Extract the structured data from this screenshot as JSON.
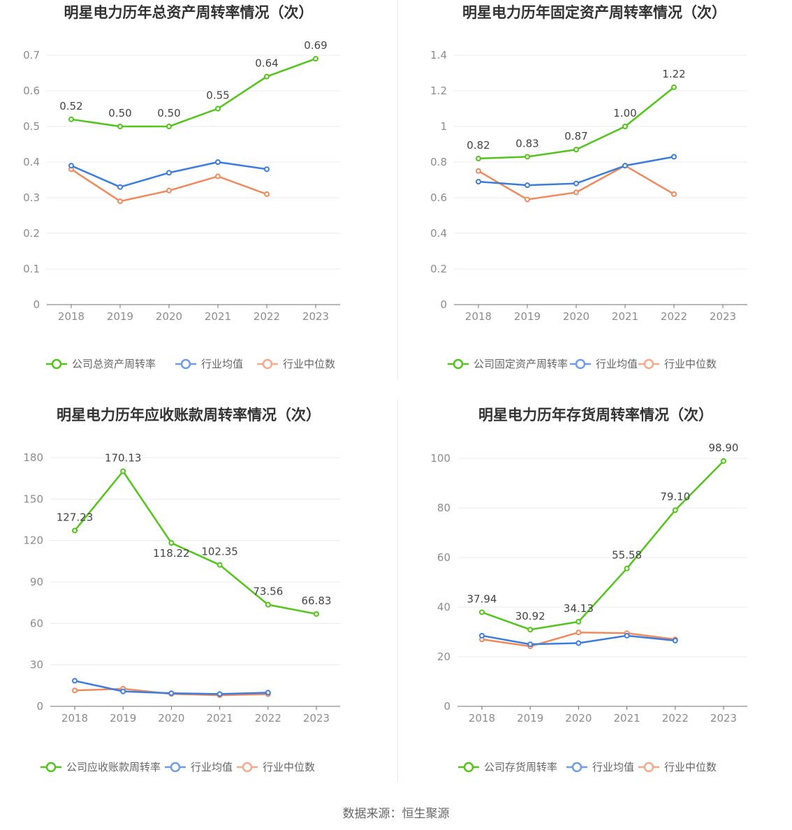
{
  "colors": {
    "company": "#52c41a",
    "avg": "#3b7ddd",
    "median": "#f08a5d",
    "avg_legend": "#6f9be8",
    "median_legend": "#f5a98a"
  },
  "chart_data": [
    {
      "type": "line",
      "title": "明星电力历年总资产周转率情况（次）",
      "categories": [
        "2018",
        "2019",
        "2020",
        "2021",
        "2022",
        "2023"
      ],
      "yticks": [
        "0",
        "0.1",
        "0.2",
        "0.3",
        "0.4",
        "0.5",
        "0.6",
        "0.7"
      ],
      "ylim": [
        0,
        0.7
      ],
      "series": [
        {
          "name": "公司总资产周转率",
          "values": [
            0.52,
            0.5,
            0.5,
            0.55,
            0.64,
            0.69
          ],
          "labels": [
            "0.52",
            "0.50",
            "0.50",
            "0.55",
            "0.64",
            "0.69"
          ]
        },
        {
          "name": "行业均值",
          "values": [
            0.39,
            0.33,
            0.37,
            0.4,
            0.38,
            null
          ]
        },
        {
          "name": "行业中位数",
          "values": [
            0.38,
            0.29,
            0.32,
            0.36,
            0.31,
            null
          ]
        }
      ]
    },
    {
      "type": "line",
      "title": "明星电力历年固定资产周转率情况（次）",
      "categories": [
        "2018",
        "2019",
        "2020",
        "2021",
        "2022",
        "2023"
      ],
      "yticks": [
        "0",
        "0.2",
        "0.4",
        "0.6",
        "0.8",
        "1",
        "1.2",
        "1.4"
      ],
      "ylim": [
        0,
        1.4
      ],
      "series": [
        {
          "name": "公司固定资产周转率",
          "values": [
            0.82,
            0.83,
            0.87,
            1.0,
            1.22,
            null
          ],
          "labels": [
            "0.82",
            "0.83",
            "0.87",
            "1.00",
            "1.22",
            ""
          ]
        },
        {
          "name": "行业均值",
          "values": [
            0.69,
            0.67,
            0.68,
            0.78,
            0.83,
            null
          ]
        },
        {
          "name": "行业中位数",
          "values": [
            0.75,
            0.59,
            0.63,
            0.78,
            0.62,
            null
          ]
        }
      ]
    },
    {
      "type": "line",
      "title": "明星电力历年应收账款周转率情况（次）",
      "categories": [
        "2018",
        "2019",
        "2020",
        "2021",
        "2022",
        "2023"
      ],
      "yticks": [
        "0",
        "30",
        "60",
        "90",
        "120",
        "150",
        "180"
      ],
      "ylim": [
        0,
        180
      ],
      "series": [
        {
          "name": "公司应收账款周转率",
          "values": [
            127.23,
            170.13,
            118.22,
            102.35,
            73.56,
            66.83
          ],
          "labels": [
            "127.23",
            "170.13",
            "118.22",
            "102.35",
            "73.56",
            "66.83"
          ]
        },
        {
          "name": "行业均值",
          "values": [
            18.5,
            10.8,
            9.5,
            8.9,
            9.9,
            null
          ]
        },
        {
          "name": "行业中位数",
          "values": [
            11.5,
            12.7,
            9.0,
            8.0,
            8.8,
            null
          ]
        }
      ]
    },
    {
      "type": "line",
      "title": "明星电力历年存货周转率情况（次）",
      "categories": [
        "2018",
        "2019",
        "2020",
        "2021",
        "2022",
        "2023"
      ],
      "yticks": [
        "0",
        "20",
        "40",
        "60",
        "80",
        "100"
      ],
      "ylim": [
        0,
        100
      ],
      "series": [
        {
          "name": "公司存货周转率",
          "values": [
            37.94,
            30.92,
            34.13,
            55.58,
            79.1,
            98.9
          ],
          "labels": [
            "37.94",
            "30.92",
            "34.13",
            "55.58",
            "79.10",
            "98.90"
          ]
        },
        {
          "name": "行业均值",
          "values": [
            28.5,
            25.0,
            25.5,
            28.5,
            26.5,
            null
          ]
        },
        {
          "name": "行业中位数",
          "values": [
            27.0,
            24.2,
            29.8,
            29.5,
            27.0,
            null
          ]
        }
      ]
    }
  ],
  "source": "数据来源：恒生聚源"
}
